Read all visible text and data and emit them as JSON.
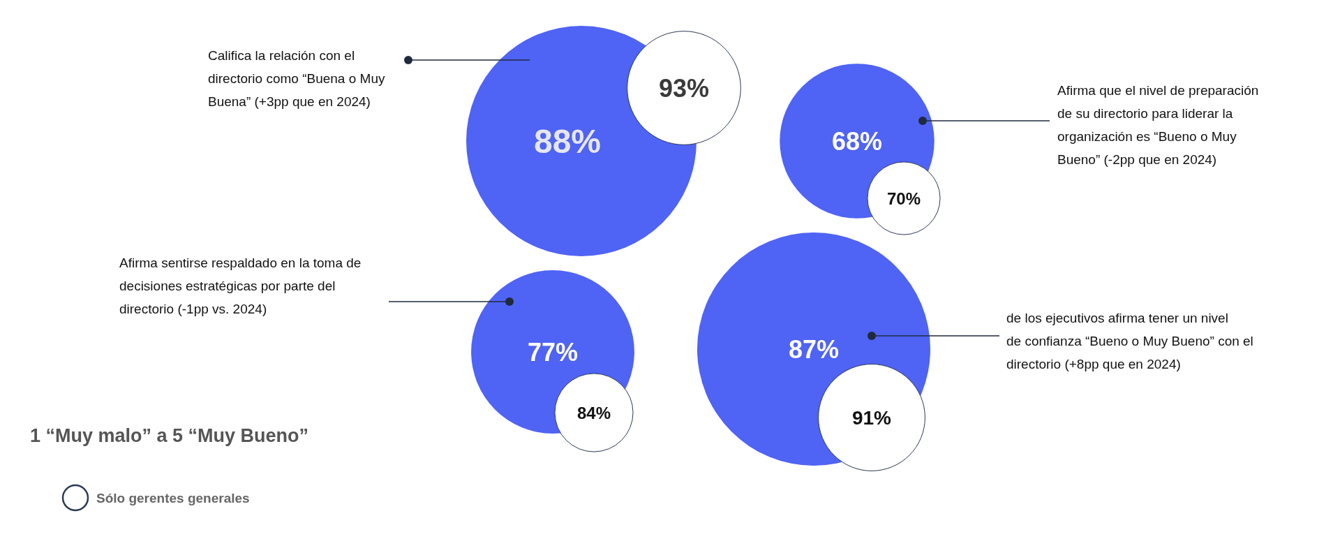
{
  "chart_data": {
    "type": "other",
    "subtitle": "1 “Muy malo” a 5 “Muy Bueno”",
    "categories": [
      "Califica la relación con el directorio como “Buena o Muy Buena” (+3pp que en 2024)",
      "Afirma que el nivel de preparación de su directorio para liderar la organización es “Bueno o Muy Bueno” (-2pp que en 2024)",
      "Afirma sentirse respaldado en la toma de decisiones estratégicas por parte del directorio (-1pp vs. 2024)",
      "de los ejecutivos afirma tener un nivel de confianza “Bueno o Muy Bueno” con el directorio (+8pp que en 2024)"
    ],
    "series": [
      {
        "color": "#4f63f5",
        "values": [
          88,
          68,
          77,
          87
        ],
        "value_labels": [
          "88%",
          "68%",
          "77%",
          "87%"
        ]
      },
      {
        "name": "Sólo gerentes generales",
        "color": "#ffffff",
        "values": [
          93,
          70,
          84,
          91
        ],
        "value_labels": [
          "93%",
          "70%",
          "84%",
          "91%"
        ]
      }
    ],
    "legend": "bottom left"
  }
}
